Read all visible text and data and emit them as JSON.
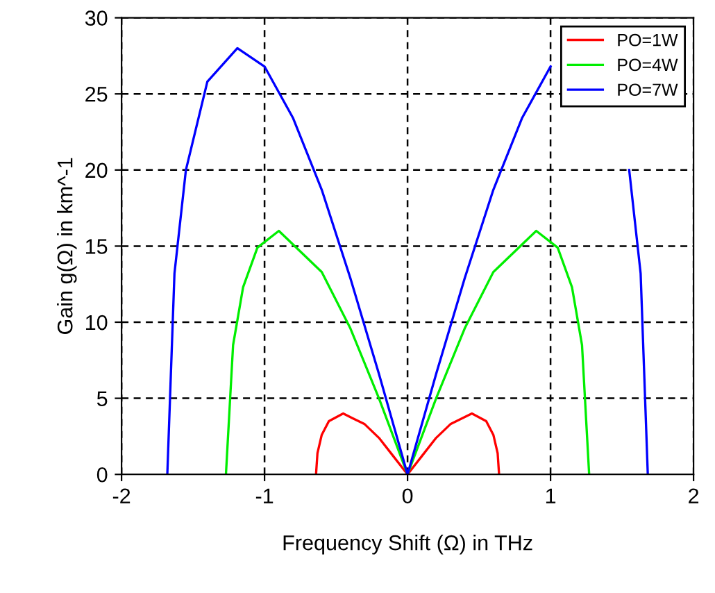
{
  "chart_data": {
    "type": "line",
    "xlabel": "Frequency Shift (Ω) in THz",
    "ylabel": "Gain g(Ω) in km^-1",
    "xlim": [
      -2,
      2
    ],
    "ylim": [
      0,
      30
    ],
    "xticks": [
      -2,
      -1,
      0,
      1,
      2
    ],
    "yticks": [
      0,
      5,
      10,
      15,
      20,
      25,
      30
    ],
    "grid": true,
    "legend": "top right",
    "line_style": "solid",
    "marker": "none",
    "series": [
      {
        "name": "PO=1W",
        "color": "#ff0000",
        "x": [
          -0.64,
          -0.63,
          -0.6,
          -0.55,
          -0.45,
          -0.3,
          -0.2,
          -0.1,
          0,
          0.1,
          0.2,
          0.3,
          0.45,
          0.55,
          0.6,
          0.63,
          0.64
        ],
        "values": [
          0,
          1.4,
          2.6,
          3.5,
          4.0,
          3.3,
          2.4,
          1.2,
          0,
          1.2,
          2.4,
          3.3,
          4.0,
          3.5,
          2.6,
          1.4,
          0
        ]
      },
      {
        "name": "PO=4W",
        "color": "#00ee00",
        "x": [
          -1.27,
          -1.22,
          -1.15,
          -1.05,
          -0.9,
          -0.6,
          -0.4,
          -0.2,
          0,
          0.2,
          0.4,
          0.6,
          0.9,
          1.05,
          1.15,
          1.22,
          1.27
        ],
        "values": [
          0,
          8.5,
          12.3,
          14.9,
          16.0,
          13.3,
          9.6,
          5.0,
          0,
          5.0,
          9.6,
          13.3,
          16.0,
          14.9,
          12.3,
          8.5,
          0
        ]
      },
      {
        "name": "PO=7W",
        "color": "#0000ff",
        "x": [
          -1.68,
          -1.63,
          -1.55,
          -1.4,
          -1.19,
          -1.0,
          -0.8,
          -0.6,
          -0.4,
          -0.2,
          0,
          0.2,
          0.4,
          0.6,
          0.8,
          1.0,
          1.19,
          1.4,
          1.55,
          1.63,
          1.68
        ],
        "values": [
          0,
          13.2,
          20.0,
          25.8,
          28.0,
          26.8,
          23.4,
          18.7,
          12.9,
          6.6,
          0,
          6.6,
          12.9,
          18.7,
          23.4,
          26.8,
          null,
          null,
          20.0,
          13.2,
          0
        ]
      }
    ]
  }
}
